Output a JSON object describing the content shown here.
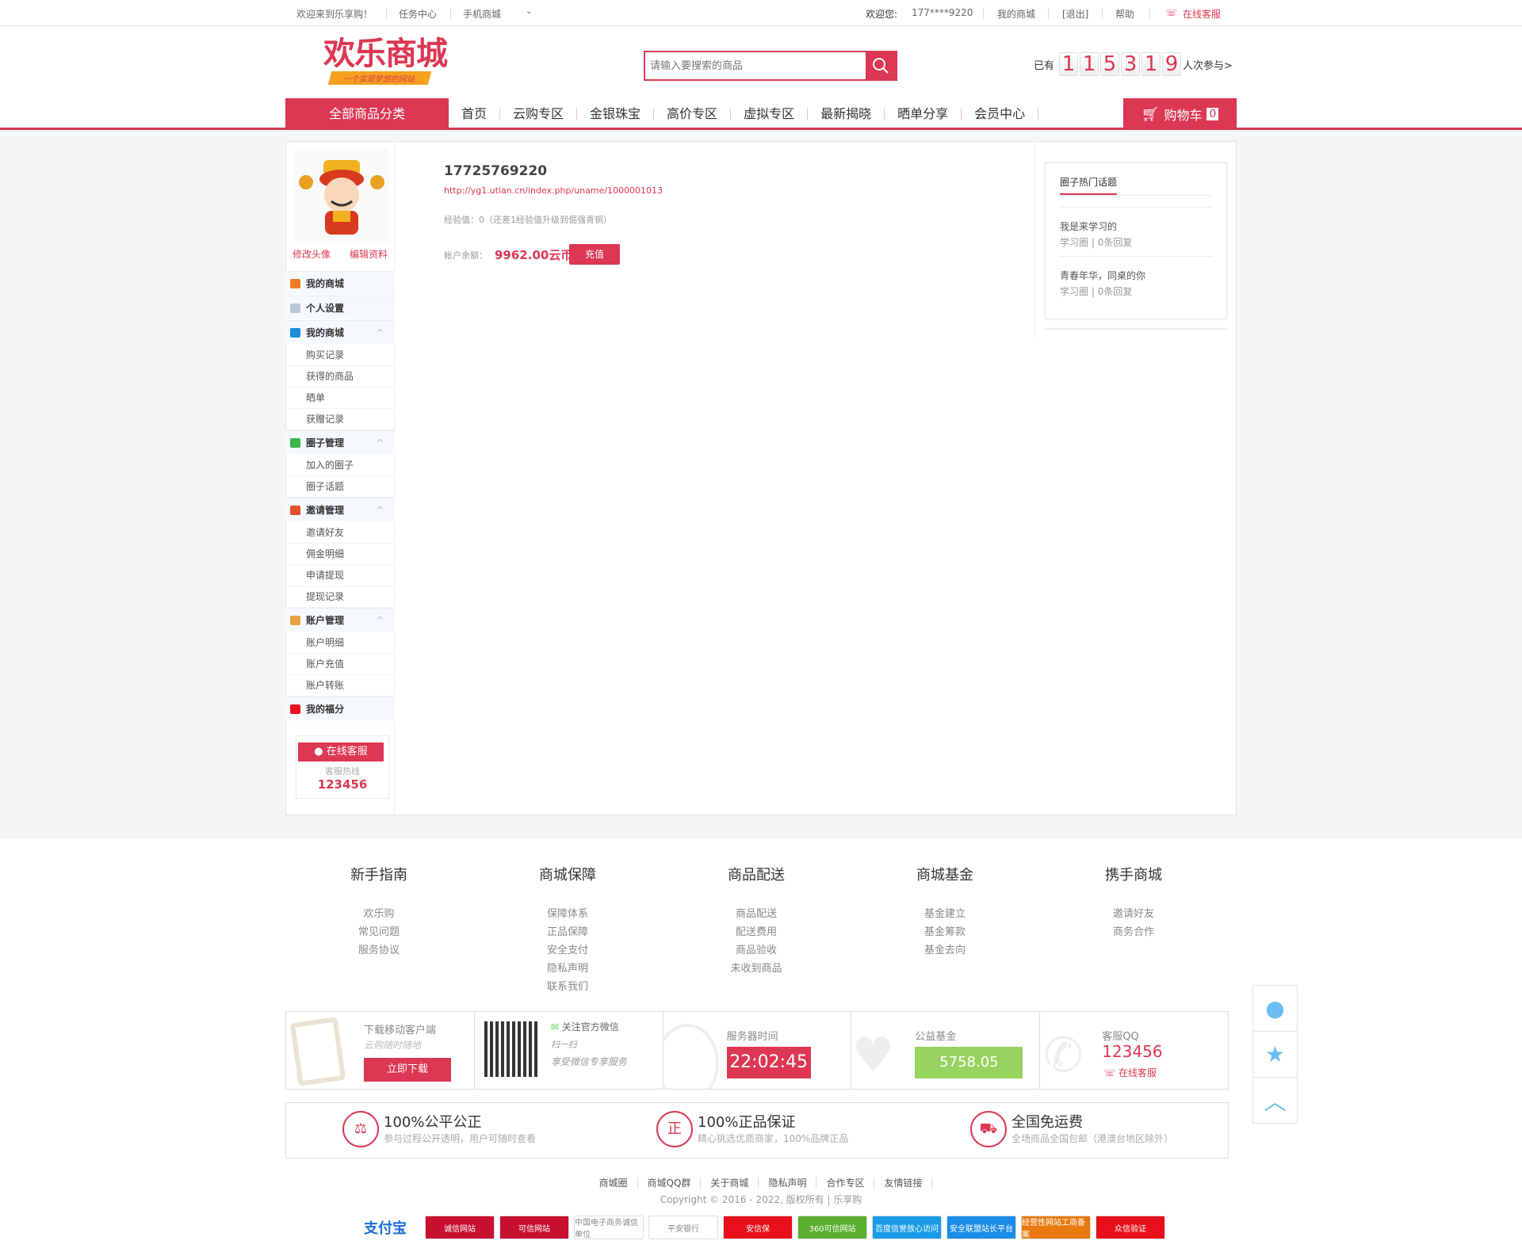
{
  "topbar": {
    "welcome": "欢迎来到乐享购！",
    "task": "任务中心",
    "mobile": "手机商城",
    "greet": "欢迎您:",
    "user": "177****9220",
    "my_mall": "我的商城",
    "logout": "[退出]",
    "help": "帮助",
    "service": "在线客服"
  },
  "header": {
    "logo": "欢乐商城",
    "slogan": "一个实现梦想的网站",
    "search_placeholder": "请输入要搜索的商品",
    "count_prefix": "已有",
    "count_digits": [
      "1",
      "1",
      "5",
      "3",
      "1",
      "9"
    ],
    "count_suffix": "人次参与>"
  },
  "nav": {
    "category": "全部商品分类",
    "items": [
      "首页",
      "云购专区",
      "金银珠宝",
      "高价专区",
      "虚拟专区",
      "最新揭晓",
      "晒单分享",
      "会员中心"
    ],
    "cart_label": "购物车",
    "cart_count": "0"
  },
  "sidebar": {
    "edit_avatar": "修改头像",
    "edit_profile": "编辑资料",
    "items": [
      {
        "label": "我的商城",
        "type": "h",
        "color": "#f07a28"
      },
      {
        "label": "个人设置",
        "type": "h",
        "color": "#b8c8d8"
      },
      {
        "label": "我的商城",
        "type": "h",
        "color": "#1a8fd8",
        "arrow": "^"
      },
      {
        "label": "购买记录",
        "type": "c"
      },
      {
        "label": "获得的商品",
        "type": "c"
      },
      {
        "label": "晒单",
        "type": "c"
      },
      {
        "label": "获赠记录",
        "type": "c"
      },
      {
        "label": "圈子管理",
        "type": "h",
        "color": "#3bb54a",
        "arrow": "^"
      },
      {
        "label": "加入的圈子",
        "type": "c"
      },
      {
        "label": "圈子话题",
        "type": "c"
      },
      {
        "label": "邀请管理",
        "type": "h",
        "color": "#e0502a",
        "arrow": "^"
      },
      {
        "label": "邀请好友",
        "type": "c"
      },
      {
        "label": "佣金明细",
        "type": "c"
      },
      {
        "label": "申请提现",
        "type": "c"
      },
      {
        "label": "提现记录",
        "type": "c"
      },
      {
        "label": "账户管理",
        "type": "h",
        "color": "#e8a040",
        "arrow": "^"
      },
      {
        "label": "账户明细",
        "type": "c"
      },
      {
        "label": "账户充值",
        "type": "c"
      },
      {
        "label": "账户转账",
        "type": "c"
      },
      {
        "label": "我的福分",
        "type": "h",
        "color": "#e8101a"
      }
    ],
    "service_btn": "在线客服",
    "hotline_label": "客服热线",
    "hotline": "123456"
  },
  "profile": {
    "name": "17725769220",
    "url": "http://yg1.utian.cn/index.php/uname/1000001013",
    "exp": "经验值：0（还差1经验值升级到倔强青铜）",
    "balance_label": "帐户余额：",
    "balance": "9962.00云币",
    "recharge": "充值"
  },
  "topics": {
    "title": "圈子热门话题",
    "items": [
      {
        "title": "我是来学习的",
        "group": "学习圈",
        "replies": "0条回复"
      },
      {
        "title": "青春年华，同桌的你",
        "group": "学习圈",
        "replies": "0条回复"
      }
    ]
  },
  "footer": {
    "columns": [
      {
        "title": "新手指南",
        "links": [
          "欢乐购",
          "常见问题",
          "服务协议"
        ]
      },
      {
        "title": "商城保障",
        "links": [
          "保障体系",
          "正品保障",
          "安全支付",
          "隐私声明",
          "联系我们"
        ]
      },
      {
        "title": "商品配送",
        "links": [
          "商品配送",
          "配送费用",
          "商品验收",
          "未收到商品"
        ]
      },
      {
        "title": "商城基金",
        "links": [
          "基金建立",
          "基金筹款",
          "基金去向"
        ]
      },
      {
        "title": "携手商城",
        "links": [
          "邀请好友",
          "商务合作"
        ]
      }
    ],
    "download_title": "下载移动客户端",
    "download_sub": "云购随时随地",
    "download_btn": "立即下载",
    "wechat_title": "关注官方微信",
    "wechat_sub1": "扫一扫",
    "wechat_sub2": "享受微信专享服务",
    "time_label": "服务器时间",
    "time": "22:02:45",
    "fund_label": "公益基金",
    "fund": "5758.05",
    "qq_label": "客服QQ",
    "qq": "123456",
    "qq_service": "在线客服",
    "guarantees": [
      {
        "icon": "scale",
        "title": "100%公平公正",
        "sub": "参与过程公开透明，用户可随时查看"
      },
      {
        "icon": "zheng",
        "title": "100%正品保证",
        "sub": "精心挑选优质商家，100%品牌正品"
      },
      {
        "icon": "truck",
        "title": "全国免运费",
        "sub": "全场商品全国包邮（港澳台地区除外）"
      }
    ],
    "links": [
      "商城圈",
      "商城QQ群",
      "关于商城",
      "隐私声明",
      "合作专区",
      "友情链接"
    ],
    "copyright": "Copyright © 2016 - 2022, 版权所有 | 乐享购",
    "badges": [
      {
        "text": "支付宝",
        "color": "#fff"
      },
      {
        "text": "诚信网站",
        "color": "#c8102e"
      },
      {
        "text": "可信网站",
        "color": "#c8102e"
      },
      {
        "text": "中国电子商务诚信单位",
        "color": "#fff"
      },
      {
        "text": "平安银行",
        "color": "#fff"
      },
      {
        "text": "安信保",
        "color": "#e8101a"
      },
      {
        "text": "360可信网站",
        "color": "#5aae30"
      },
      {
        "text": "百度信誉放心访问",
        "color": "#1a9be8"
      },
      {
        "text": "安全联盟站长平台",
        "color": "#1a8de8"
      },
      {
        "text": "经营性网站工商备案",
        "color": "#e87a10"
      },
      {
        "text": "众信验证",
        "color": "#e8101a"
      }
    ]
  },
  "colors": {
    "accent": "#dc3753",
    "fund_green": "#96d35f",
    "float_blue": "#6bbcf1"
  }
}
